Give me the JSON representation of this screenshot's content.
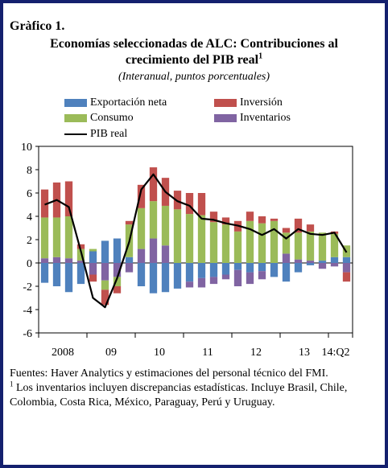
{
  "figure_label": "Gràfico 1.",
  "title_line1": "Economías seleccionadas de ALC: Contribuciones al",
  "title_line2": "crecimiento del PIB real",
  "title_footnote_mark": "1",
  "subtitle": "(Interanual, puntos porcentuales)",
  "footnote_sources": "Fuentes: Haver Analytics y estimaciones del personal técnico del FMI.",
  "footnote_mark": "1",
  "footnote_text": " Los inventarios incluyen discrepancias estadísticas. Incluye Brasil, Chile, Colombia, Costa Rica, México, Paraguay, Perú y Uruguay.",
  "colors": {
    "exportacion_neta": "#4f81bd",
    "inversion": "#c0504d",
    "consumo": "#9bbb59",
    "inventarios": "#8064a2",
    "pib_real": "#000000",
    "frame": "#14206e"
  },
  "chart_data": {
    "type": "bar",
    "stacked": true,
    "quarters": [
      "2008Q1",
      "2008Q2",
      "2008Q3",
      "2008Q4",
      "2009Q1",
      "2009Q2",
      "2009Q3",
      "2009Q4",
      "2010Q1",
      "2010Q2",
      "2010Q3",
      "2010Q4",
      "2011Q1",
      "2011Q2",
      "2011Q3",
      "2011Q4",
      "2012Q1",
      "2012Q2",
      "2012Q3",
      "2012Q4",
      "2013Q1",
      "2013Q2",
      "2013Q3",
      "2013Q4",
      "2014Q1",
      "2014Q2"
    ],
    "xtick_labels": [
      "2008",
      "09",
      "10",
      "11",
      "12",
      "13",
      "14:Q2"
    ],
    "ylim": [
      -6,
      10
    ],
    "yticks": [
      -6,
      -4,
      -2,
      0,
      2,
      4,
      6,
      8,
      10
    ],
    "legend": [
      "Exportación neta",
      "Inversión",
      "Consumo",
      "Inventarios",
      "PIB real"
    ],
    "series": [
      {
        "name": "Exportación neta",
        "color": "#4f81bd",
        "values": [
          -1.7,
          -2.0,
          -2.5,
          -1.8,
          1.0,
          1.9,
          2.1,
          0.5,
          -2.0,
          -2.6,
          -2.5,
          -2.2,
          -1.6,
          -1.3,
          -1.2,
          -1.0,
          -0.6,
          -0.8,
          -0.7,
          -1.2,
          -1.6,
          -0.8,
          -0.2,
          0.2,
          0.5,
          0.5
        ]
      },
      {
        "name": "Inventarios",
        "color": "#8064a2",
        "values": [
          0.4,
          0.5,
          0.4,
          0.2,
          -1.0,
          -1.5,
          -1.2,
          -0.8,
          1.2,
          2.1,
          1.5,
          0.0,
          -0.5,
          -0.8,
          -0.6,
          -0.4,
          -1.4,
          -1.0,
          -0.7,
          0.0,
          0.8,
          0.3,
          0.2,
          -0.5,
          -0.3,
          -0.8
        ]
      },
      {
        "name": "Consumo",
        "color": "#9bbb59",
        "values": [
          3.5,
          3.4,
          3.6,
          1.0,
          0.2,
          -0.8,
          -0.8,
          2.8,
          3.5,
          3.2,
          3.4,
          4.6,
          4.2,
          4.1,
          3.5,
          3.3,
          2.7,
          3.6,
          3.4,
          3.6,
          1.8,
          2.3,
          2.5,
          2.4,
          2.0,
          1.0
        ]
      },
      {
        "name": "Inversión",
        "color": "#c0504d",
        "values": [
          2.4,
          3.0,
          3.0,
          0.4,
          -0.6,
          -1.3,
          -0.6,
          0.3,
          2.0,
          2.9,
          2.4,
          1.6,
          1.8,
          1.9,
          0.9,
          0.6,
          0.9,
          0.8,
          0.6,
          0.2,
          0.4,
          1.2,
          0.6,
          0.0,
          0.2,
          -0.8
        ]
      }
    ],
    "line": {
      "name": "PIB real",
      "color": "#000000",
      "values": [
        5.0,
        5.4,
        4.8,
        1.0,
        -3.0,
        -3.8,
        -1.3,
        1.8,
        6.3,
        7.6,
        6.1,
        5.3,
        4.9,
        3.8,
        3.7,
        3.4,
        3.2,
        2.9,
        2.4,
        2.9,
        2.1,
        2.9,
        2.5,
        2.4,
        2.6,
        0.9
      ]
    }
  }
}
